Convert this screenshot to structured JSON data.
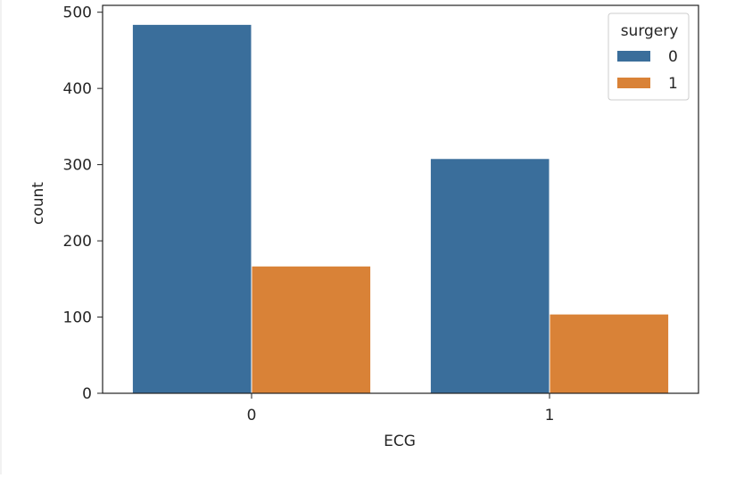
{
  "chart_data": {
    "type": "bar",
    "categories": [
      "0",
      "1"
    ],
    "series": [
      {
        "name": "0",
        "values": [
          484,
          308
        ],
        "color": "#3a6e9b"
      },
      {
        "name": "1",
        "values": [
          167,
          104
        ],
        "color": "#d98237"
      }
    ],
    "title": "",
    "xlabel": "ECG",
    "ylabel": "count",
    "ylim": [
      0,
      509
    ],
    "yticks": [
      0,
      100,
      200,
      300,
      400,
      500
    ],
    "grid": false,
    "legend": {
      "title": "surgery",
      "placement": "upper-right"
    }
  }
}
